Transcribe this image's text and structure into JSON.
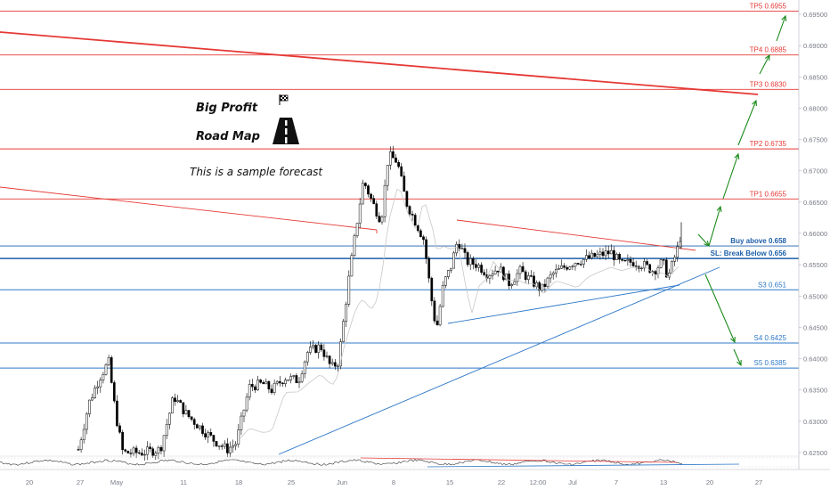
{
  "chart_data": {
    "type": "candlestick",
    "instrument_note": "This is a sample forecast",
    "title_lines": [
      "Big Profit",
      "Road Map"
    ],
    "price_axis": {
      "ticks": [
        "0.69500",
        "0.69000",
        "0.68500",
        "0.68000",
        "0.67500",
        "0.67000",
        "0.66500",
        "0.66000",
        "0.65500",
        "0.65000",
        "0.64500",
        "0.64000",
        "0.63500",
        "0.63000",
        "0.62500"
      ],
      "ylim": [
        0.6225,
        0.6975
      ]
    },
    "time_axis": {
      "ticks": [
        "20",
        "27",
        "May",
        "11",
        "18",
        "25",
        "Jun",
        "8",
        "15",
        "22",
        "12:00",
        "Jul",
        "7",
        "13",
        "20",
        "27"
      ]
    },
    "levels": [
      {
        "label": "TP5 0.6955",
        "value": 0.6955,
        "color": "#e53935"
      },
      {
        "label": "TP4 0.6885",
        "value": 0.6885,
        "color": "#e53935"
      },
      {
        "label": "TP3 0.6830",
        "value": 0.683,
        "color": "#e53935"
      },
      {
        "label": "TP2 0.6735",
        "value": 0.6735,
        "color": "#e53935"
      },
      {
        "label": "TP1 0.6655",
        "value": 0.6655,
        "color": "#e53935"
      },
      {
        "label": "Buy above 0.658",
        "value": 0.658,
        "color": "#1e5fa8"
      },
      {
        "label": "SL: Break Below 0.656",
        "value": 0.656,
        "color": "#1e5fa8"
      },
      {
        "label": "S3 0.651",
        "value": 0.651,
        "color": "#2e78c7"
      },
      {
        "label": "S4 0.6425",
        "value": 0.6425,
        "color": "#2e78c7"
      },
      {
        "label": "S5 0.6385",
        "value": 0.6385,
        "color": "#2e78c7"
      }
    ],
    "colors": {
      "up": "#ffffff",
      "down": "#000000",
      "bull_arrow": "#1b8a1b",
      "bear_arrow": "#1b8a1b",
      "trend_red": "#e53935",
      "trend_blue": "#2e78c7"
    }
  }
}
